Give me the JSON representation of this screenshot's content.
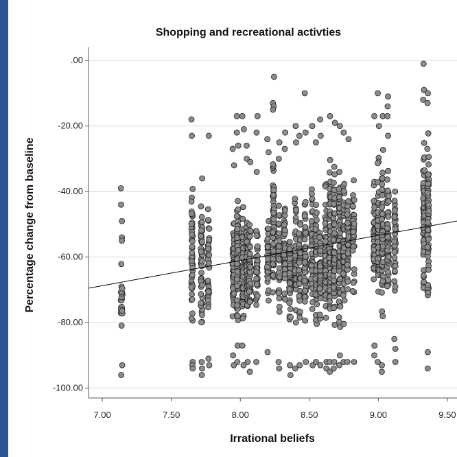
{
  "chart_data": {
    "type": "scatter",
    "title": "Shopping and recreational activties",
    "xlabel": "Irrational beliefs",
    "ylabel": "Percentage change from baseline",
    "xlim": [
      6.9,
      9.57
    ],
    "ylim": [
      -103,
      4
    ],
    "x_ticks": [
      7.0,
      7.5,
      8.0,
      8.5,
      9.0,
      9.5
    ],
    "x_tick_labels": [
      "7.00",
      "7.50",
      "8.00",
      "8.50",
      "9.00",
      "9.50"
    ],
    "y_ticks": [
      0,
      -20,
      -40,
      -60,
      -80,
      -100
    ],
    "y_tick_labels": [
      ".00",
      "-20.00",
      "-40.00",
      "-60.00",
      "-80.00",
      "-100.00"
    ],
    "grid": "horizontal",
    "fit_line": {
      "x": [
        6.9,
        9.57
      ],
      "y": [
        -69.5,
        -49
      ]
    },
    "columns": [
      {
        "x": 7.14,
        "ymin": -86,
        "ymax": -60,
        "extras": [
          -39,
          -44,
          -49,
          -54,
          -55,
          -93,
          -96
        ],
        "n": 26
      },
      {
        "x": 7.65,
        "ymin": -85,
        "ymax": -29,
        "extras": [
          -18,
          -23,
          -92,
          -93,
          -94
        ],
        "n": 45
      },
      {
        "x": 7.72,
        "ymin": -87,
        "ymax": -30,
        "extras": [
          -92,
          -94,
          -96
        ],
        "n": 48
      },
      {
        "x": 7.77,
        "ymin": -84,
        "ymax": -40,
        "extras": [
          -23,
          -91,
          -93
        ],
        "n": 38
      },
      {
        "x": 7.95,
        "ymin": -82,
        "ymax": -45,
        "extras": [
          -27,
          -32,
          -90,
          -93
        ],
        "n": 55
      },
      {
        "x": 7.98,
        "ymin": -84,
        "ymax": -35,
        "extras": [
          -17,
          -22,
          -26,
          -87,
          -92
        ],
        "n": 60
      },
      {
        "x": 8.02,
        "ymin": -86,
        "ymax": -40,
        "extras": [
          -17,
          -21,
          -87,
          -93
        ],
        "n": 60
      },
      {
        "x": 8.05,
        "ymin": -80,
        "ymax": -43,
        "extras": [
          -26,
          -30,
          -92
        ],
        "n": 55
      },
      {
        "x": 8.07,
        "ymin": -82,
        "ymax": -45,
        "extras": [
          -31,
          -95
        ],
        "n": 45
      },
      {
        "x": 8.12,
        "ymin": -82,
        "ymax": -45,
        "extras": [
          -17,
          -22,
          -34,
          -92
        ],
        "n": 40
      },
      {
        "x": 8.2,
        "ymin": -78,
        "ymax": -45,
        "extras": [
          -24,
          -28,
          -89
        ],
        "n": 35
      },
      {
        "x": 8.24,
        "ymin": -80,
        "ymax": -22,
        "extras": [
          -5,
          -13,
          -14,
          -15
        ],
        "n": 60
      },
      {
        "x": 8.28,
        "ymin": -80,
        "ymax": -38,
        "extras": [
          -25,
          -30,
          -92,
          -94
        ],
        "n": 35
      },
      {
        "x": 8.32,
        "ymin": -80,
        "ymax": -35,
        "extras": [
          -22,
          -27
        ],
        "n": 45
      },
      {
        "x": 8.36,
        "ymin": -85,
        "ymax": -45,
        "extras": [
          -93,
          -96
        ],
        "n": 45
      },
      {
        "x": 8.4,
        "ymin": -82,
        "ymax": -38,
        "extras": [
          -20,
          -25,
          -94
        ],
        "n": 45
      },
      {
        "x": 8.43,
        "ymin": -84,
        "ymax": -40,
        "extras": [
          -23,
          -93
        ],
        "n": 40
      },
      {
        "x": 8.47,
        "ymin": -85,
        "ymax": -35,
        "extras": [
          -10,
          -22,
          -92
        ],
        "n": 50
      },
      {
        "x": 8.52,
        "ymin": -84,
        "ymax": -32,
        "extras": [
          -20,
          -93
        ],
        "n": 50
      },
      {
        "x": 8.55,
        "ymin": -86,
        "ymax": -35,
        "extras": [
          -25,
          -92
        ],
        "n": 45
      },
      {
        "x": 8.58,
        "ymin": -84,
        "ymax": -45,
        "extras": [
          -18,
          -23,
          -93
        ],
        "n": 45
      },
      {
        "x": 8.62,
        "ymin": -88,
        "ymax": -30,
        "extras": [
          -92,
          -94
        ],
        "n": 55
      },
      {
        "x": 8.65,
        "ymin": -88,
        "ymax": -22,
        "extras": [
          -17,
          -92,
          -95
        ],
        "n": 65
      },
      {
        "x": 8.68,
        "ymin": -90,
        "ymax": -25,
        "extras": [
          -19,
          -92,
          -94
        ],
        "n": 65
      },
      {
        "x": 8.72,
        "ymin": -88,
        "ymax": -25,
        "extras": [
          -20,
          -90,
          -93
        ],
        "n": 55
      },
      {
        "x": 8.75,
        "ymin": -85,
        "ymax": -25,
        "extras": [
          -22,
          -92
        ],
        "n": 50
      },
      {
        "x": 8.78,
        "ymin": -80,
        "ymax": -30,
        "extras": [
          -24,
          -92
        ],
        "n": 40
      },
      {
        "x": 8.82,
        "ymin": -77,
        "ymax": -32,
        "extras": [
          -92
        ],
        "n": 35
      },
      {
        "x": 8.97,
        "ymin": -75,
        "ymax": -30,
        "extras": [
          -17,
          -87,
          -90
        ],
        "n": 40
      },
      {
        "x": 9.0,
        "ymin": -82,
        "ymax": -25,
        "extras": [
          -10,
          -20,
          -92
        ],
        "n": 55
      },
      {
        "x": 9.03,
        "ymin": -85,
        "ymax": -22,
        "extras": [
          -17,
          -93,
          -95
        ],
        "n": 55
      },
      {
        "x": 9.07,
        "ymin": -80,
        "ymax": -25,
        "extras": [
          -11,
          -14,
          -17,
          -23
        ],
        "n": 50
      },
      {
        "x": 9.12,
        "ymin": -78,
        "ymax": -32,
        "extras": [
          -85,
          -88,
          -92
        ],
        "n": 40
      },
      {
        "x": 9.33,
        "ymin": -83,
        "ymax": -20,
        "extras": [
          -1,
          -9,
          -12
        ],
        "n": 60
      },
      {
        "x": 9.36,
        "ymin": -80,
        "ymax": -15,
        "extras": [
          -10,
          -13,
          -89,
          -94
        ],
        "n": 65
      }
    ]
  }
}
